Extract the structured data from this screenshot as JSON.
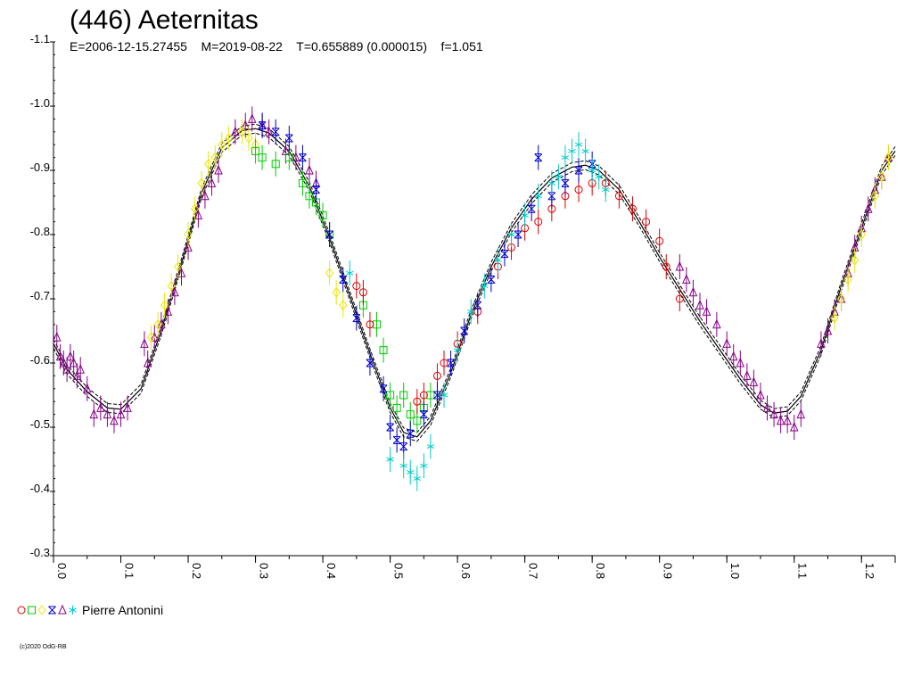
{
  "chart_data": {
    "type": "scatter",
    "title": "(446) Aeternitas",
    "subtitle": "E=2006-12-15.27455    M=2019-08-22    T=0.655889 (0.000015)    f=1.051",
    "xlabel": "",
    "ylabel": "",
    "xlim": [
      0.0,
      1.25
    ],
    "ylim": [
      -1.1,
      -0.3
    ],
    "y_inverted": true,
    "x_ticks": [
      "0.0",
      "0.1",
      "0.2",
      "0.3",
      "0.4",
      "0.5",
      "0.6",
      "0.7",
      "0.8",
      "0.9",
      "1.0",
      "1.1",
      "1.2"
    ],
    "y_ticks": [
      "-1.1",
      "-1.0",
      "-0.9",
      "-0.8",
      "-0.7",
      "-0.6",
      "-0.5",
      "-0.4",
      "-0.3"
    ],
    "grid": false,
    "legend": {
      "placement": "bottom-left",
      "label": "Pierre Antonini",
      "symbols": [
        {
          "shape": "circle",
          "color": "#dd0000"
        },
        {
          "shape": "square",
          "color": "#00cc00"
        },
        {
          "shape": "diamond",
          "color": "#e8e800"
        },
        {
          "shape": "cross",
          "color": "#0000cc"
        },
        {
          "shape": "triangle",
          "color": "#880088"
        },
        {
          "shape": "star",
          "color": "#00cccc"
        }
      ]
    },
    "fit_curve": {
      "x": [
        0.0,
        0.02,
        0.05,
        0.08,
        0.1,
        0.13,
        0.16,
        0.19,
        0.22,
        0.25,
        0.28,
        0.3,
        0.32,
        0.35,
        0.38,
        0.41,
        0.44,
        0.47,
        0.5,
        0.52,
        0.54,
        0.56,
        0.59,
        0.62,
        0.65,
        0.68,
        0.71,
        0.74,
        0.77,
        0.79,
        0.81,
        0.84,
        0.87,
        0.9,
        0.93,
        0.96,
        0.99,
        1.02,
        1.05,
        1.07,
        1.09,
        1.11,
        1.14,
        1.17,
        1.2,
        1.23,
        1.25
      ],
      "y": [
        -0.63,
        -0.59,
        -0.555,
        -0.53,
        -0.528,
        -0.56,
        -0.65,
        -0.755,
        -0.865,
        -0.935,
        -0.962,
        -0.965,
        -0.958,
        -0.93,
        -0.875,
        -0.795,
        -0.705,
        -0.615,
        -0.53,
        -0.492,
        -0.485,
        -0.51,
        -0.585,
        -0.675,
        -0.75,
        -0.81,
        -0.855,
        -0.888,
        -0.905,
        -0.908,
        -0.9,
        -0.87,
        -0.82,
        -0.765,
        -0.715,
        -0.665,
        -0.62,
        -0.575,
        -0.535,
        -0.522,
        -0.525,
        -0.548,
        -0.62,
        -0.72,
        -0.81,
        -0.9,
        -0.93
      ]
    },
    "series": [
      {
        "marker": "triangle",
        "color": "#880088",
        "x": [
          0.005,
          0.01,
          0.015,
          0.02,
          0.025,
          0.03,
          0.035,
          0.04,
          0.05,
          0.06,
          0.07,
          0.08,
          0.09,
          0.1,
          0.11,
          0.135,
          0.14,
          0.15,
          0.16,
          0.17,
          0.18,
          0.19,
          0.2,
          0.215,
          0.225,
          0.235,
          0.245,
          0.27,
          0.285,
          0.295,
          0.31,
          0.32,
          0.345,
          0.36,
          0.38,
          0.39,
          0.93,
          0.94,
          0.95,
          0.96,
          0.97,
          0.985,
          1.0,
          1.01,
          1.02,
          1.03,
          1.04,
          1.05,
          1.06,
          1.07,
          1.08,
          1.09,
          1.1,
          1.11,
          1.14,
          1.15,
          1.16,
          1.17,
          1.18,
          1.19,
          1.2,
          1.21,
          1.22,
          1.23,
          1.24
        ],
        "y": [
          -0.64,
          -0.61,
          -0.6,
          -0.59,
          -0.61,
          -0.6,
          -0.58,
          -0.59,
          -0.56,
          -0.52,
          -0.53,
          -0.52,
          -0.51,
          -0.52,
          -0.53,
          -0.63,
          -0.6,
          -0.64,
          -0.66,
          -0.68,
          -0.71,
          -0.74,
          -0.78,
          -0.83,
          -0.86,
          -0.88,
          -0.9,
          -0.96,
          -0.97,
          -0.98,
          -0.97,
          -0.96,
          -0.93,
          -0.92,
          -0.9,
          -0.88,
          -0.75,
          -0.73,
          -0.71,
          -0.69,
          -0.68,
          -0.66,
          -0.63,
          -0.61,
          -0.6,
          -0.58,
          -0.57,
          -0.55,
          -0.53,
          -0.52,
          -0.51,
          -0.51,
          -0.5,
          -0.52,
          -0.63,
          -0.65,
          -0.68,
          -0.7,
          -0.74,
          -0.78,
          -0.81,
          -0.84,
          -0.87,
          -0.89,
          -0.92
        ]
      },
      {
        "marker": "diamond",
        "color": "#e8e800",
        "x": [
          0.145,
          0.155,
          0.165,
          0.175,
          0.185,
          0.2,
          0.21,
          0.22,
          0.23,
          0.24,
          0.25,
          0.26,
          0.28,
          0.29,
          0.3,
          0.41,
          0.42,
          0.43,
          1.16,
          1.17,
          1.18,
          1.19,
          1.2,
          1.22,
          1.23,
          1.24
        ],
        "y": [
          -0.64,
          -0.66,
          -0.69,
          -0.72,
          -0.75,
          -0.8,
          -0.84,
          -0.88,
          -0.91,
          -0.92,
          -0.94,
          -0.95,
          -0.96,
          -0.95,
          -0.94,
          -0.74,
          -0.71,
          -0.69,
          -0.67,
          -0.7,
          -0.73,
          -0.76,
          -0.8,
          -0.86,
          -0.89,
          -0.92
        ]
      },
      {
        "marker": "square",
        "color": "#00cc00",
        "x": [
          0.3,
          0.31,
          0.33,
          0.35,
          0.37,
          0.38,
          0.39,
          0.4,
          0.41,
          0.46,
          0.48,
          0.49,
          0.5,
          0.51,
          0.52,
          0.53,
          0.54,
          0.55,
          0.56
        ],
        "y": [
          -0.93,
          -0.92,
          -0.91,
          -0.92,
          -0.88,
          -0.86,
          -0.85,
          -0.83,
          -0.8,
          -0.69,
          -0.66,
          -0.62,
          -0.55,
          -0.53,
          -0.55,
          -0.52,
          -0.51,
          -0.53,
          -0.55
        ]
      },
      {
        "marker": "circle",
        "color": "#dd0000",
        "x": [
          0.45,
          0.46,
          0.47,
          0.54,
          0.55,
          0.57,
          0.58,
          0.6,
          0.63,
          0.66,
          0.68,
          0.7,
          0.72,
          0.74,
          0.76,
          0.78,
          0.8,
          0.82,
          0.84,
          0.86,
          0.88,
          0.9,
          0.91,
          0.93
        ],
        "y": [
          -0.72,
          -0.71,
          -0.66,
          -0.54,
          -0.55,
          -0.58,
          -0.6,
          -0.63,
          -0.68,
          -0.75,
          -0.78,
          -0.81,
          -0.82,
          -0.84,
          -0.86,
          -0.87,
          -0.88,
          -0.88,
          -0.86,
          -0.84,
          -0.82,
          -0.79,
          -0.75,
          -0.7
        ]
      },
      {
        "marker": "cross",
        "color": "#0000cc",
        "x": [
          0.31,
          0.33,
          0.35,
          0.37,
          0.39,
          0.41,
          0.43,
          0.45,
          0.47,
          0.49,
          0.5,
          0.51,
          0.52,
          0.53,
          0.55,
          0.57,
          0.59,
          0.61,
          0.63,
          0.65,
          0.67,
          0.69,
          0.71,
          0.72,
          0.74,
          0.76,
          0.78,
          0.8
        ],
        "y": [
          -0.97,
          -0.96,
          -0.95,
          -0.92,
          -0.87,
          -0.8,
          -0.73,
          -0.67,
          -0.6,
          -0.56,
          -0.5,
          -0.48,
          -0.47,
          -0.49,
          -0.52,
          -0.55,
          -0.6,
          -0.65,
          -0.69,
          -0.73,
          -0.77,
          -0.8,
          -0.84,
          -0.92,
          -0.86,
          -0.88,
          -0.9,
          -0.91
        ]
      },
      {
        "marker": "star",
        "color": "#00cccc",
        "x": [
          0.44,
          0.5,
          0.52,
          0.53,
          0.54,
          0.55,
          0.56,
          0.58,
          0.6,
          0.62,
          0.64,
          0.66,
          0.68,
          0.7,
          0.72,
          0.74,
          0.75,
          0.76,
          0.77,
          0.78,
          0.79,
          0.8,
          0.81,
          0.82
        ],
        "y": [
          -0.74,
          -0.45,
          -0.44,
          -0.43,
          -0.42,
          -0.44,
          -0.47,
          -0.55,
          -0.62,
          -0.68,
          -0.72,
          -0.76,
          -0.8,
          -0.83,
          -0.86,
          -0.88,
          -0.89,
          -0.92,
          -0.93,
          -0.94,
          -0.93,
          -0.9,
          -0.89,
          -0.87
        ]
      }
    ]
  },
  "copyright": "(c)2020 OdG-RB"
}
